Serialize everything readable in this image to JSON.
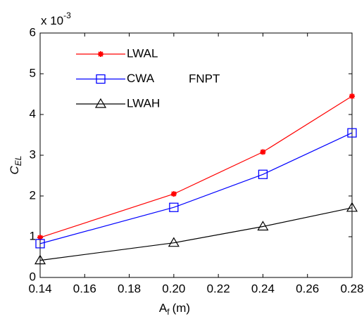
{
  "chart_data": {
    "type": "line",
    "x": [
      0.14,
      0.2,
      0.24,
      0.28
    ],
    "series": [
      {
        "name": "LWAL",
        "color": "#ff0000",
        "marker": "asterisk",
        "values": [
          0.98,
          2.05,
          3.08,
          4.45
        ]
      },
      {
        "name": "CWA",
        "color": "#0000ff",
        "marker": "square",
        "values": [
          0.83,
          1.72,
          2.53,
          3.55
        ]
      },
      {
        "name": "LWAH",
        "color": "#000000",
        "marker": "triangle",
        "values": [
          0.42,
          0.85,
          1.25,
          1.71
        ]
      }
    ],
    "annotation": "FNPT",
    "xlabel": {
      "main": "A",
      "sub": "f",
      "unit": "(m)"
    },
    "ylabel": {
      "main": "C",
      "sub": "EL"
    },
    "y_multiplier": {
      "base": "x 10",
      "exponent": "-3"
    },
    "xlim": [
      0.14,
      0.28
    ],
    "xticks": [
      0.14,
      0.16,
      0.18,
      {
        "value": 0.2,
        "label": "0.20"
      },
      0.22,
      0.24,
      0.26,
      0.28
    ],
    "ylim": [
      0,
      6
    ],
    "yticks": [
      0,
      1,
      2,
      3,
      4,
      5,
      6
    ],
    "grid": false,
    "legend": "upper left"
  }
}
